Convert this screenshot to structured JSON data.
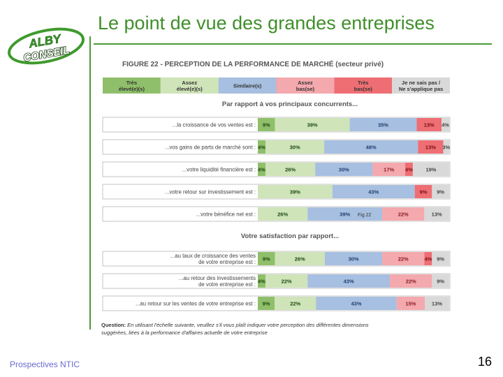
{
  "slide": {
    "title": "Le point de vue des grandes entreprises",
    "footer": "Prospectives NTIC",
    "page_number": "16",
    "logo_text_top": "ALBY",
    "logo_text_bottom": "CONSEIL"
  },
  "colors": {
    "title_green": "#3f8f2a",
    "very_high": "#8fbf6a",
    "high": "#cfe4b8",
    "similar": "#a7bfe0",
    "low": "#f3a9ad",
    "very_low": "#ee6e74",
    "na": "#d9d9d9"
  },
  "chart_data": {
    "type": "stacked-bar-horizontal",
    "title": "FIGURE 22 - PERCEPTION DE LA PERFORMANCE DE MARCHÉ (secteur privé)",
    "legend": [
      "Très élevé(e)(s)",
      "Assez élevé(e)(s)",
      "Similaire(s)",
      "Assez bas(se)",
      "Très bas(se)",
      "Je ne sais pas / Ne s'applique pas"
    ],
    "groups": [
      {
        "heading": "Par rapport à vos principaux concurrents...",
        "rows": [
          {
            "label": [
              "...la croissance de vos ventes est :"
            ],
            "values": [
              9,
              39,
              35,
              0,
              13,
              4
            ]
          },
          {
            "label": [
              "...vos gains de parts de marché sont :"
            ],
            "values": [
              4,
              30,
              48,
              0,
              13,
              3
            ]
          },
          {
            "label": [
              "...votre liquidité financière est :"
            ],
            "values": [
              4,
              26,
              30,
              17,
              4,
              19
            ]
          },
          {
            "label": [
              "...votre retour sur investissement est :"
            ],
            "values": [
              0,
              39,
              43,
              0,
              9,
              9
            ]
          },
          {
            "label": [
              "...votre bénéfice net est :"
            ],
            "values": [
              0,
              26,
              39,
              22,
              0,
              13
            ]
          }
        ]
      },
      {
        "heading": "Votre satisfaction par rapport...",
        "rows": [
          {
            "label": [
              "...au taux de croissance des ventes",
              "de votre entreprise est :"
            ],
            "values": [
              9,
              26,
              30,
              22,
              4,
              9
            ]
          },
          {
            "label": [
              "...au retour des investissements",
              "de votre entreprise est :"
            ],
            "values": [
              4,
              22,
              43,
              22,
              0,
              9
            ]
          },
          {
            "label": [
              "...au retour sur les ventes de votre entreprise est :"
            ],
            "values": [
              9,
              22,
              43,
              15,
              0,
              13
            ]
          }
        ]
      }
    ],
    "annotation": "Fig 22",
    "question_label": "Question:",
    "question_text": [
      "En utilisant l'échelle suivante, veuillez s'il vous plaît indiquer votre perception des différentes dimensions",
      "suggérées, liées à la performance d'affaires actuelle de votre entreprise"
    ]
  }
}
